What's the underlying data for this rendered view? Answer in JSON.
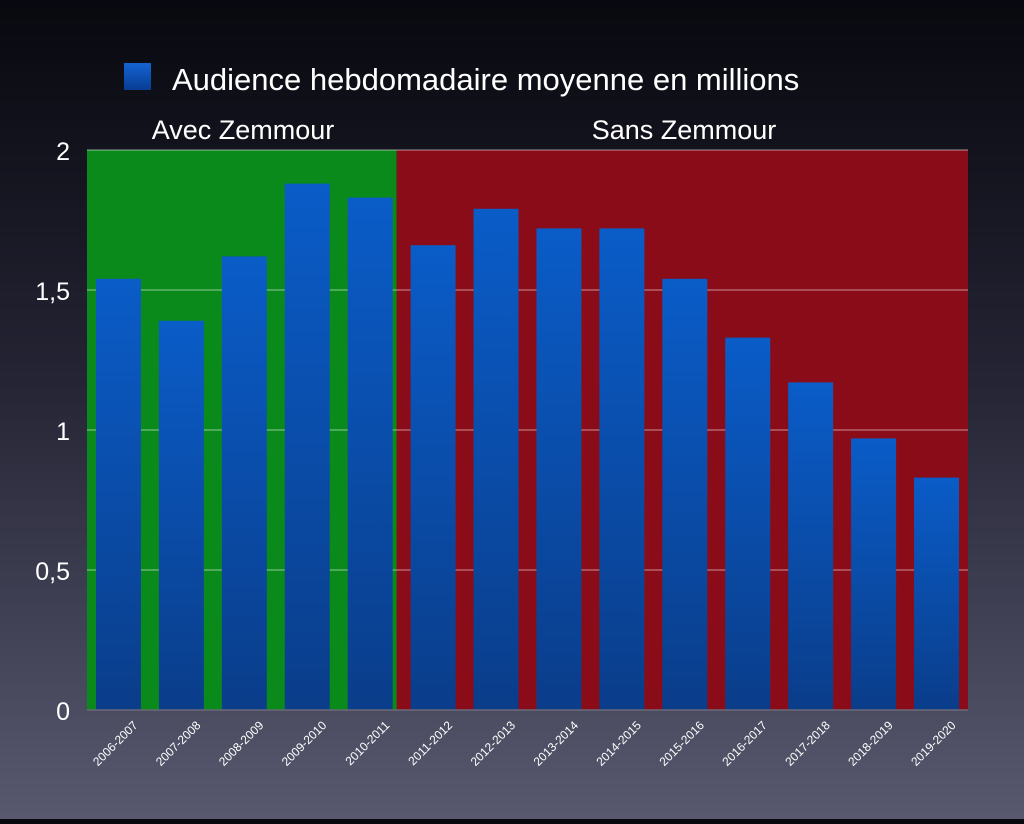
{
  "chart_data": {
    "type": "bar",
    "legend": {
      "label": "Audience hebdomadaire moyenne en millions",
      "placement": "top-center",
      "color": "#0a4fb0"
    },
    "regions": [
      {
        "label": "Avec Zemmour",
        "from": "2006-2007",
        "to": "2010-2011",
        "color": "#0a8a1a"
      },
      {
        "label": "Sans Zemmour",
        "from": "2011-2012",
        "to": "2019-2020",
        "color": "#8a0c18"
      }
    ],
    "categories": [
      "2006-2007",
      "2007-2008",
      "2008-2009",
      "2009-2010",
      "2010-2011",
      "2011-2012",
      "2012-2013",
      "2013-2014",
      "2014-2015",
      "2015-2016",
      "2016-2017",
      "2017-2018",
      "2018-2019",
      "2019-2020"
    ],
    "series": [
      {
        "name": "Audience hebdomadaire moyenne en millions",
        "values": [
          1.54,
          1.39,
          1.62,
          1.88,
          1.83,
          1.66,
          1.79,
          1.72,
          1.72,
          1.54,
          1.33,
          1.17,
          0.97,
          0.83
        ],
        "color": "#0a55bf"
      }
    ],
    "ylim": [
      0,
      2
    ],
    "yticks": [
      {
        "value": 0,
        "label": "0"
      },
      {
        "value": 0.5,
        "label": "0,5"
      },
      {
        "value": 1,
        "label": "1"
      },
      {
        "value": 1.5,
        "label": "1,5"
      },
      {
        "value": 2,
        "label": "2"
      }
    ],
    "grid": true,
    "xlabel": "",
    "ylabel": ""
  }
}
